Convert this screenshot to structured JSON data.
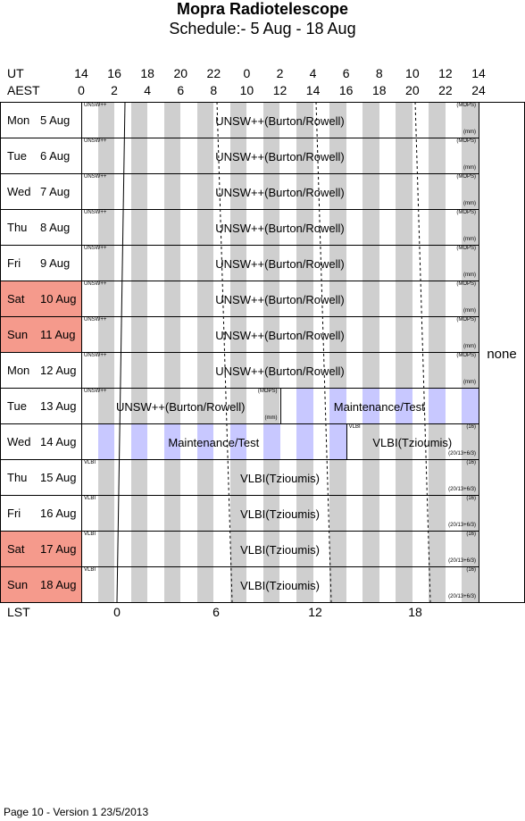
{
  "title": "Mopra Radiotelescope",
  "subtitle": "Schedule:- 5  Aug - 18 Aug",
  "header": {
    "ut_label": "UT",
    "aest_label": "AEST",
    "lst_label": "LST",
    "ut_ticks": [
      "14",
      "16",
      "18",
      "20",
      "22",
      "0",
      "2",
      "4",
      "6",
      "8",
      "10",
      "12",
      "14"
    ],
    "aest_ticks": [
      "0",
      "2",
      "4",
      "6",
      "8",
      "10",
      "12",
      "14",
      "16",
      "18",
      "20",
      "22",
      "24"
    ],
    "lst_ticks": [
      "0",
      "6",
      "12",
      "18"
    ]
  },
  "days": [
    {
      "name": "Mon",
      "date": "5 Aug",
      "weekend": false
    },
    {
      "name": "Tue",
      "date": "6 Aug",
      "weekend": false
    },
    {
      "name": "Wed",
      "date": "7 Aug",
      "weekend": false
    },
    {
      "name": "Thu",
      "date": "8 Aug",
      "weekend": false
    },
    {
      "name": "Fri",
      "date": "9 Aug",
      "weekend": false
    },
    {
      "name": "Sat",
      "date": "10 Aug",
      "weekend": true
    },
    {
      "name": "Sun",
      "date": "11 Aug",
      "weekend": true
    },
    {
      "name": "Mon",
      "date": "12 Aug",
      "weekend": false
    },
    {
      "name": "Tue",
      "date": "13 Aug",
      "weekend": false
    },
    {
      "name": "Wed",
      "date": "14 Aug",
      "weekend": false
    },
    {
      "name": "Thu",
      "date": "15 Aug",
      "weekend": false
    },
    {
      "name": "Fri",
      "date": "16 Aug",
      "weekend": false
    },
    {
      "name": "Sat",
      "date": "17 Aug",
      "weekend": true
    },
    {
      "name": "Sun",
      "date": "18 Aug",
      "weekend": true
    }
  ],
  "blocks": [
    {
      "row": 0,
      "start": 0,
      "end": 24,
      "project": "UNSW++(Burton/Rowell)",
      "tag": "UNSW++",
      "receiver": "(MOPS)",
      "note": "(mm)"
    },
    {
      "row": 1,
      "start": 0,
      "end": 24,
      "project": "UNSW++(Burton/Rowell)",
      "tag": "UNSW++",
      "receiver": "(MOPS)",
      "note": "(mm)"
    },
    {
      "row": 2,
      "start": 0,
      "end": 24,
      "project": "UNSW++(Burton/Rowell)",
      "tag": "UNSW++",
      "receiver": "(MOPS)",
      "note": "(mm)"
    },
    {
      "row": 3,
      "start": 0,
      "end": 24,
      "project": "UNSW++(Burton/Rowell)",
      "tag": "UNSW++",
      "receiver": "(MOPS)",
      "note": "(mm)"
    },
    {
      "row": 4,
      "start": 0,
      "end": 24,
      "project": "UNSW++(Burton/Rowell)",
      "tag": "UNSW++",
      "receiver": "(MOPS)",
      "note": "(mm)"
    },
    {
      "row": 5,
      "start": 0,
      "end": 24,
      "project": "UNSW++(Burton/Rowell)",
      "tag": "UNSW++",
      "receiver": "(MOPS)",
      "note": "(mm)"
    },
    {
      "row": 6,
      "start": 0,
      "end": 24,
      "project": "UNSW++(Burton/Rowell)",
      "tag": "UNSW++",
      "receiver": "(MOPS)",
      "note": "(mm)"
    },
    {
      "row": 7,
      "start": 0,
      "end": 24,
      "project": "UNSW++(Burton/Rowell)",
      "tag": "UNSW++",
      "receiver": "(MOPS)",
      "note": "(mm)"
    },
    {
      "row": 8,
      "start": 0,
      "end": 12,
      "project": "UNSW++(Burton/Rowell)",
      "tag": "UNSW++",
      "receiver": "(MOPS)",
      "note": "(mm)"
    },
    {
      "row": 8,
      "start": 12,
      "end": 24,
      "project": "Maintenance/Test",
      "maint": true
    },
    {
      "row": 9,
      "start": 0,
      "end": 16,
      "project": "Maintenance/Test",
      "maint": true
    },
    {
      "row": 9,
      "start": 16,
      "end": 24,
      "project": "VLBI(Tzioumis)",
      "tag": "VLBI",
      "receiver": "(16)",
      "note": "(20/13+6/3)"
    },
    {
      "row": 10,
      "start": 0,
      "end": 24,
      "project": "VLBI(Tzioumis)",
      "tag": "VLBI",
      "receiver": "(16)",
      "note": "(20/13+6/3)"
    },
    {
      "row": 11,
      "start": 0,
      "end": 24,
      "project": "VLBI(Tzioumis)",
      "tag": "VLBI",
      "receiver": "(16)",
      "note": "(20/13+6/3)"
    },
    {
      "row": 12,
      "start": 0,
      "end": 24,
      "project": "VLBI(Tzioumis)",
      "tag": "VLBI",
      "receiver": "(16)",
      "note": "(20/13+6/3)"
    },
    {
      "row": 13,
      "start": 0,
      "end": 24,
      "project": "VLBI(Tzioumis)",
      "tag": "VLBI",
      "receiver": "(16)",
      "note": "(20/13+6/3)"
    }
  ],
  "none_label": "none",
  "none_rows": [
    0,
    7
  ],
  "footer": "Page 10 - Version 1  23/5/2013"
}
